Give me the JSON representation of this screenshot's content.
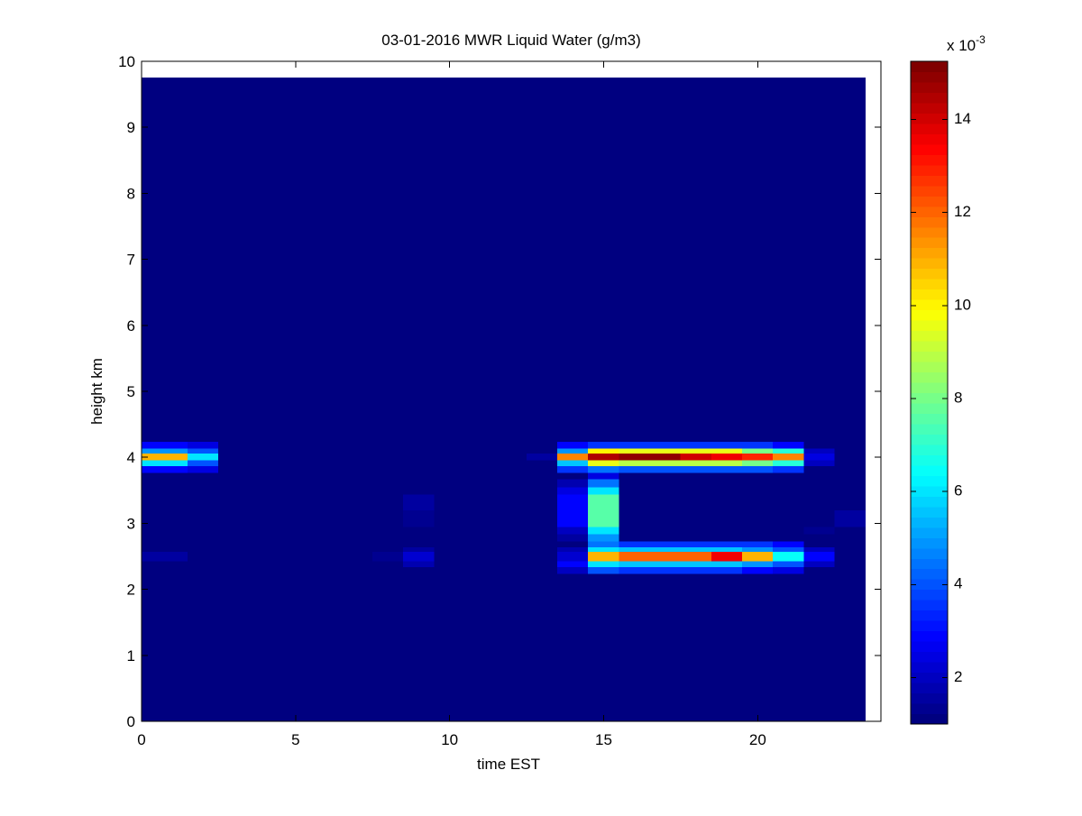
{
  "chart_data": {
    "type": "heatmap",
    "title": "03-01-2016 MWR Liquid Water (g/m3)",
    "x_label": "time EST",
    "y_label": "height km",
    "xlim": [
      0,
      24
    ],
    "ylim": [
      0,
      10
    ],
    "xticks": [
      0,
      5,
      10,
      15,
      20
    ],
    "yticks": [
      0,
      1,
      2,
      3,
      4,
      5,
      6,
      7,
      8,
      9,
      10
    ],
    "colormap": "jet",
    "clim": [
      1,
      15.25
    ],
    "cticks": [
      2,
      4,
      6,
      8,
      10,
      12,
      14
    ],
    "colorbar_multiplier": {
      "base": "x 10",
      "exponent": "-3"
    },
    "x_edges": [
      0,
      1.5,
      2.5,
      3.5,
      4.5,
      5.5,
      6.5,
      7.5,
      8.5,
      9.5,
      10.5,
      11.5,
      12.5,
      13.5,
      14.5,
      15.5,
      16.5,
      17.5,
      18.5,
      19.5,
      20.5,
      21.5,
      22.5,
      23.5
    ],
    "y_edges": [
      0,
      2.24,
      2.34,
      2.43,
      2.57,
      2.64,
      2.73,
      2.84,
      2.95,
      3.2,
      3.44,
      3.55,
      3.67,
      3.77,
      3.87,
      3.96,
      4.06,
      4.14,
      4.24,
      9.75
    ],
    "z": [
      [
        1,
        1,
        1,
        1,
        1,
        1,
        1,
        1,
        1,
        1,
        1,
        1,
        1,
        1,
        1,
        1,
        1,
        1,
        1,
        1,
        1,
        1,
        1
      ],
      [
        1,
        1,
        1,
        1,
        1,
        1,
        1,
        1,
        1,
        1,
        1,
        1,
        1,
        2,
        4,
        3.5,
        3.5,
        3.5,
        3.5,
        3,
        2.5,
        1,
        1
      ],
      [
        1,
        1,
        1,
        1,
        1,
        1,
        1,
        1,
        1.8,
        1,
        1,
        1,
        1,
        3,
        6,
        5.5,
        5.5,
        5.5,
        5.5,
        5,
        4,
        2,
        1
      ],
      [
        1.5,
        1,
        1,
        1,
        1,
        1,
        1,
        1.3,
        2.2,
        1,
        1,
        1,
        1,
        2.2,
        11,
        12,
        12,
        12,
        13.5,
        11,
        6.5,
        2.8,
        1
      ],
      [
        1,
        1,
        1,
        1,
        1,
        1,
        1,
        1,
        1.5,
        1,
        1,
        1,
        1,
        1.8,
        6,
        5.5,
        5.5,
        5.5,
        5.5,
        5,
        4,
        2,
        1
      ],
      [
        1,
        1,
        1,
        1,
        1,
        1,
        1,
        1,
        1,
        1,
        1,
        1,
        1,
        1,
        4.5,
        3.5,
        3.5,
        3.5,
        3.5,
        3.5,
        3,
        1,
        1
      ],
      [
        1,
        1,
        1,
        1,
        1,
        1,
        1,
        1,
        1,
        1,
        1,
        1,
        1,
        1.5,
        5,
        1,
        1,
        1,
        1,
        1,
        1,
        1,
        1
      ],
      [
        1,
        1,
        1,
        1,
        1,
        1,
        1,
        1,
        1,
        1,
        1,
        1,
        1,
        2,
        6,
        1,
        1,
        1,
        1,
        1,
        1,
        1.3,
        1
      ],
      [
        1,
        1,
        1,
        1,
        1,
        1,
        1,
        1,
        1.4,
        1,
        1,
        1,
        1,
        2.8,
        7.5,
        1,
        1,
        1,
        1,
        1,
        1,
        1,
        1.5
      ],
      [
        1,
        1,
        1,
        1,
        1,
        1,
        1,
        1,
        1.5,
        1,
        1,
        1,
        1,
        2.8,
        7.5,
        1,
        1,
        1,
        1,
        1,
        1,
        1,
        1
      ],
      [
        1,
        1,
        1,
        1,
        1,
        1,
        1,
        1,
        1,
        1,
        1,
        1,
        1,
        2.5,
        6,
        1,
        1,
        1,
        1,
        1,
        1,
        1,
        1
      ],
      [
        1,
        1,
        1,
        1,
        1,
        1,
        1,
        1,
        1,
        1,
        1,
        1,
        1,
        1.8,
        4.5,
        1,
        1,
        1,
        1,
        1,
        1,
        1,
        1
      ],
      [
        1,
        1,
        1,
        1,
        1,
        1,
        1,
        1,
        1,
        1,
        1,
        1,
        1,
        1,
        2.5,
        1,
        1,
        1,
        1,
        1,
        1,
        1,
        1
      ],
      [
        3,
        2.5,
        1,
        1,
        1,
        1,
        1,
        1,
        1,
        1,
        1,
        1,
        1,
        3.5,
        4.5,
        4,
        4,
        4,
        4,
        4,
        3.5,
        1,
        1
      ],
      [
        6,
        4,
        1,
        1,
        1,
        1,
        1,
        1,
        1,
        1,
        1,
        1,
        1,
        5.5,
        9.5,
        9,
        9,
        9,
        9,
        8,
        7,
        2,
        1
      ],
      [
        11,
        6,
        1,
        1,
        1,
        1,
        1,
        1,
        1,
        1,
        1,
        1,
        1.6,
        11.5,
        14.5,
        15,
        15,
        14,
        13.5,
        13,
        11.5,
        2.5,
        1
      ],
      [
        5,
        4,
        1,
        1,
        1,
        1,
        1,
        1,
        1,
        1,
        1,
        1,
        1,
        5,
        10,
        9.5,
        9.5,
        9.5,
        9.5,
        8,
        7,
        2,
        1
      ],
      [
        3,
        2.5,
        1,
        1,
        1,
        1,
        1,
        1,
        1,
        1,
        1,
        1,
        1,
        3,
        3.5,
        3.5,
        3.5,
        3.5,
        3.5,
        3.5,
        3,
        1,
        1
      ],
      [
        1,
        1,
        1,
        1,
        1,
        1,
        1,
        1,
        1,
        1,
        1,
        1,
        1,
        1,
        1,
        1,
        1,
        1,
        1,
        1,
        1,
        1,
        1
      ]
    ]
  }
}
